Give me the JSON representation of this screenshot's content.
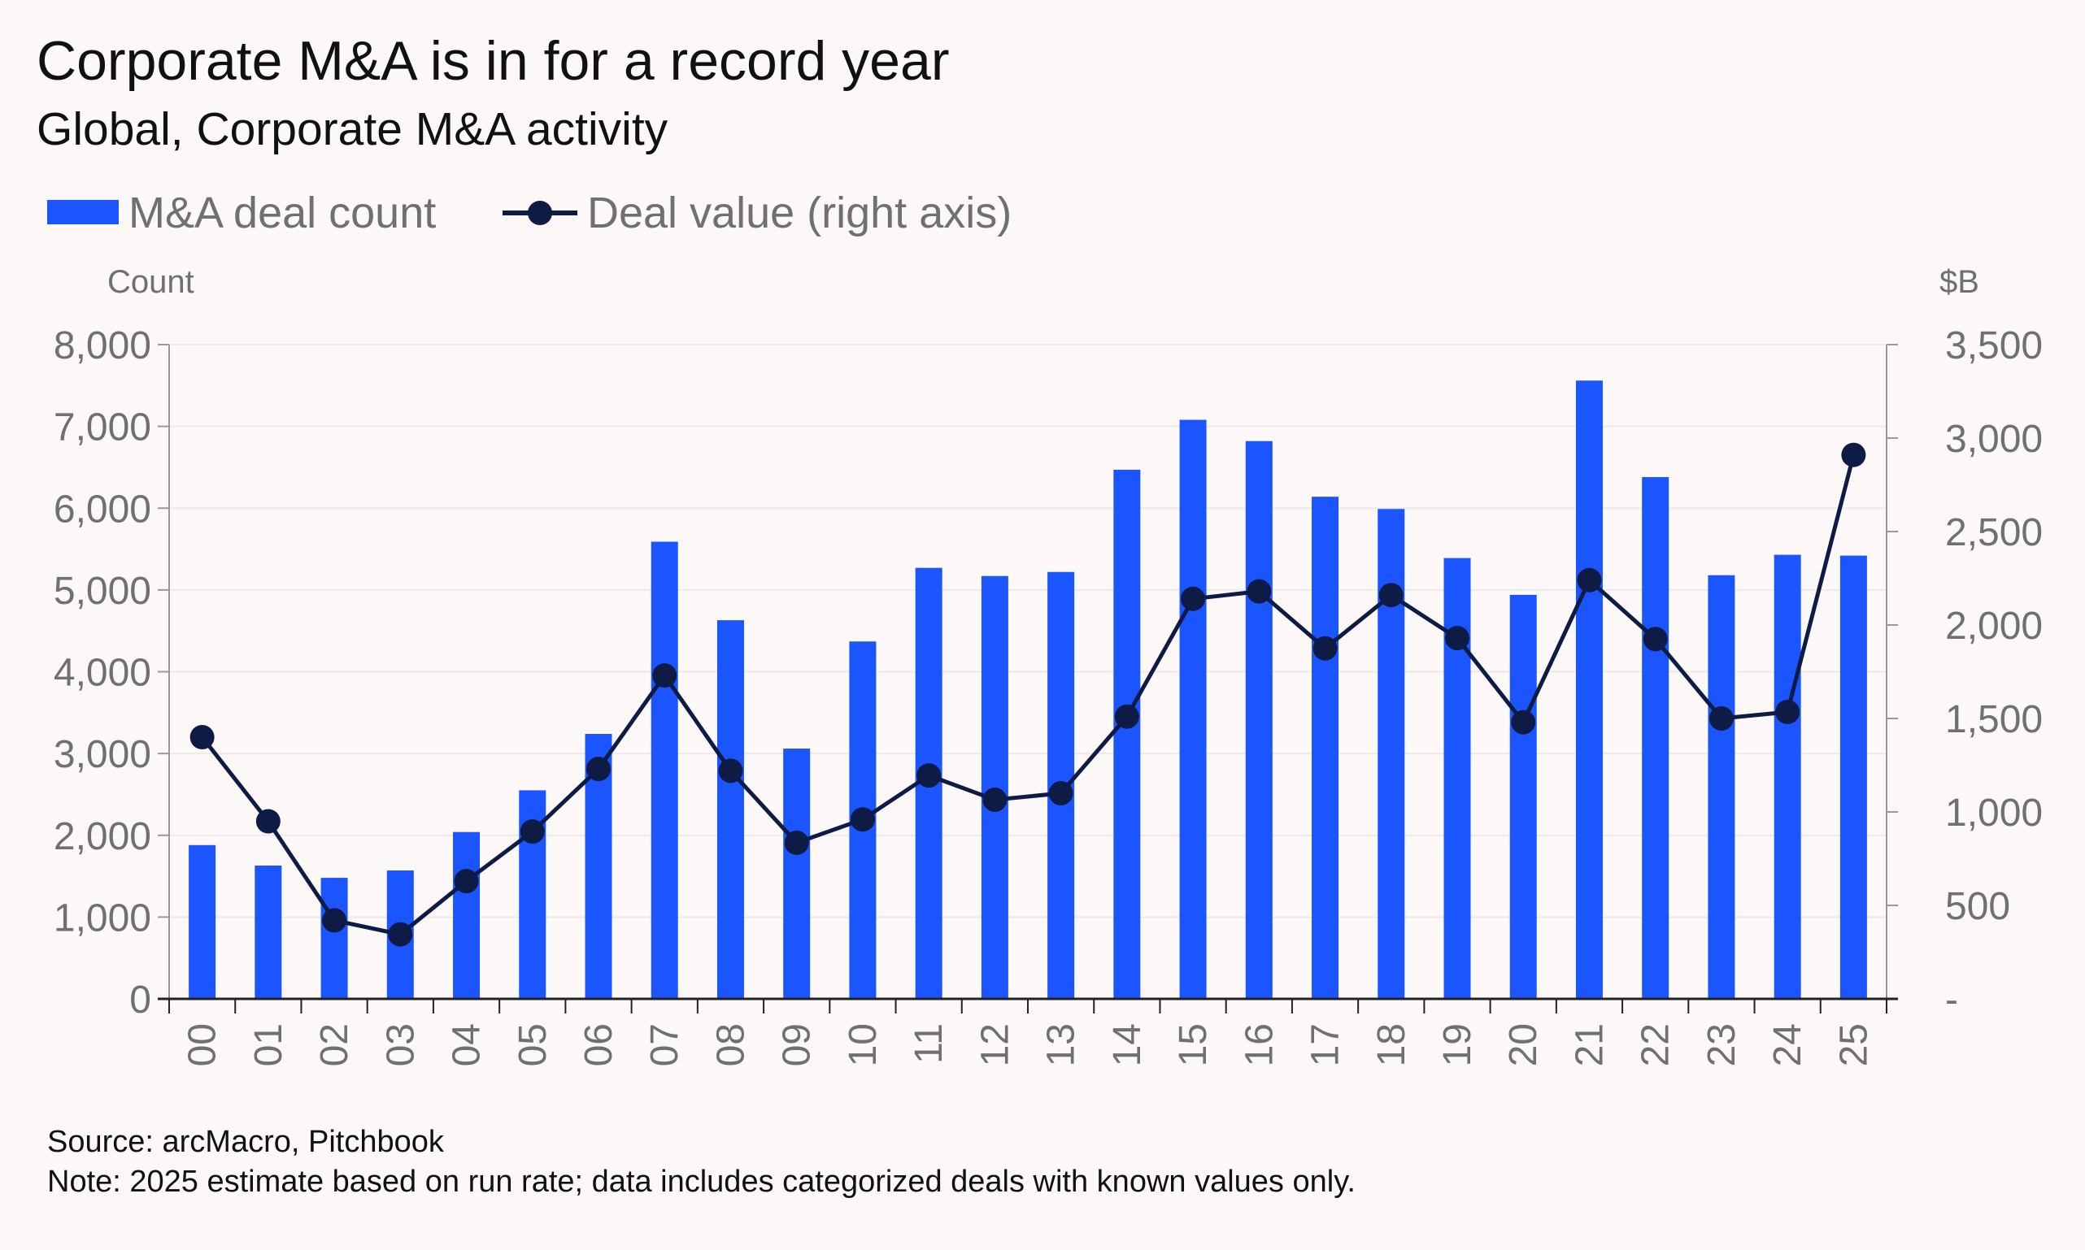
{
  "title": "Corporate M&A is in for a record year",
  "subtitle": "Global, Corporate M&A activity",
  "legend": {
    "bars_label": "M&A deal count",
    "line_label": "Deal value (right axis)"
  },
  "axes": {
    "left_unit": "Count",
    "right_unit": "$B",
    "left_ticks": [
      "0",
      "1,000",
      "2,000",
      "3,000",
      "4,000",
      "5,000",
      "6,000",
      "7,000",
      "8,000"
    ],
    "right_ticks": [
      "-",
      "500",
      "1,000",
      "1,500",
      "2,000",
      "2,500",
      "3,000",
      "3,500"
    ]
  },
  "footer": {
    "source": "Source: arcMacro, Pitchbook",
    "note": "Note: 2025 estimate based on run rate; data includes categorized deals with known values only."
  },
  "colors": {
    "bar": "#1a55ff",
    "line": "#0d1b45",
    "axis": "#999999",
    "grid": "#efeaea"
  },
  "chart_data": {
    "type": "bar+line",
    "title": "Corporate M&A is in for a record year",
    "subtitle": "Global, Corporate M&A activity",
    "categories": [
      "00",
      "01",
      "02",
      "03",
      "04",
      "05",
      "06",
      "07",
      "08",
      "09",
      "10",
      "11",
      "12",
      "13",
      "14",
      "15",
      "16",
      "17",
      "18",
      "19",
      "20",
      "21",
      "22",
      "23",
      "24",
      "25"
    ],
    "series": [
      {
        "name": "M&A deal count",
        "type": "bar",
        "axis": "left",
        "values": [
          1880,
          1630,
          1480,
          1570,
          2040,
          2550,
          3240,
          5590,
          4630,
          3060,
          4370,
          5270,
          5170,
          5220,
          6470,
          7080,
          6820,
          6140,
          5990,
          5390,
          4940,
          7560,
          6380,
          5180,
          5430,
          5420
        ]
      },
      {
        "name": "Deal value (right axis)",
        "type": "line",
        "axis": "right",
        "values": [
          1400,
          950,
          420,
          345,
          630,
          895,
          1230,
          1730,
          1220,
          835,
          960,
          1195,
          1065,
          1100,
          1510,
          2140,
          2180,
          1875,
          2160,
          1930,
          1480,
          2240,
          1925,
          1500,
          1535,
          2910
        ]
      }
    ],
    "ylabel_left": "Count",
    "ylabel_right": "$B",
    "ylim_left": [
      0,
      8000
    ],
    "ylim_right": [
      0,
      3500
    ],
    "grid": true,
    "legend_position": "top-left"
  }
}
